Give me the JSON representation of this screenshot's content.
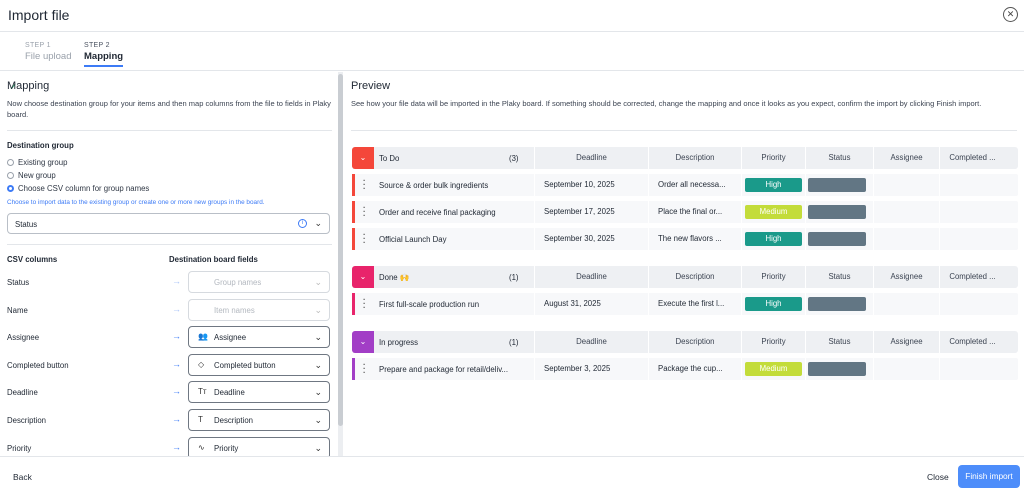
{
  "header": {
    "title": "Import file"
  },
  "steps": [
    {
      "label": "STEP 1",
      "name": "File upload"
    },
    {
      "label": "STEP 2",
      "name": "Mapping"
    }
  ],
  "mapping": {
    "title": "Mapping",
    "description": "Now choose destination group for your items and then map columns from the file to fields in Plaky board.",
    "destination_group_label": "Destination group",
    "options": [
      "Existing group",
      "New group",
      "Choose CSV column for group names"
    ],
    "hint": "Choose to import data to the existing group or create one or more new groups in the board.",
    "selected": "Status",
    "csv_columns_label": "CSV columns",
    "dest_fields_label": "Destination board fields",
    "rows": [
      {
        "csv": "Status",
        "field": "Group names",
        "icon": ""
      },
      {
        "csv": "Name",
        "field": "Item names",
        "icon": ""
      },
      {
        "csv": "Assignee",
        "field": "Assignee",
        "icon": "people-icon"
      },
      {
        "csv": "Completed button",
        "field": "Completed button",
        "icon": "tag-icon"
      },
      {
        "csv": "Deadline",
        "field": "Deadline",
        "icon": "text-type-icon"
      },
      {
        "csv": "Description",
        "field": "Description",
        "icon": "text-icon"
      },
      {
        "csv": "Priority",
        "field": "Priority",
        "icon": "pulse-icon"
      }
    ]
  },
  "preview": {
    "title": "Preview",
    "description": "See how your file data will be imported in the Plaky board. If something should be corrected, change the mapping and once it looks as you expect, confirm the import by clicking Finish import.",
    "columns": [
      "Deadline",
      "Description",
      "Priority",
      "Status",
      "Assignee",
      "Completed ..."
    ],
    "groups": [
      {
        "name": "To Do",
        "count": "(3)",
        "color": "#f4473a",
        "items": [
          {
            "name": "Source & order bulk ingredients",
            "deadline": "September 10, 2025",
            "description": "Order all necessa...",
            "priority": "High"
          },
          {
            "name": "Order and receive final packaging",
            "deadline": "September 17, 2025",
            "description": "Place the final or...",
            "priority": "Medium"
          },
          {
            "name": "Official Launch Day",
            "deadline": "September 30, 2025",
            "description": "The new flavors ...",
            "priority": "High"
          }
        ]
      },
      {
        "name": "Done 🙌",
        "count": "(1)",
        "color": "#e8246b",
        "items": [
          {
            "name": "First full-scale production run",
            "deadline": "August 31, 2025",
            "description": "Execute the first l...",
            "priority": "High"
          }
        ]
      },
      {
        "name": "In progress",
        "count": "(1)",
        "color": "#a23ec6",
        "items": [
          {
            "name": "Prepare and package for retail/deliv...",
            "deadline": "September 3, 2025",
            "description": "Package the cup...",
            "priority": "Medium"
          }
        ]
      }
    ],
    "priority_colors": {
      "High": "#1a9a8a",
      "Medium": "#c3dc3a"
    },
    "status_color": "#627684"
  },
  "footer": {
    "back": "Back",
    "close": "Close",
    "finish": "Finish import"
  }
}
